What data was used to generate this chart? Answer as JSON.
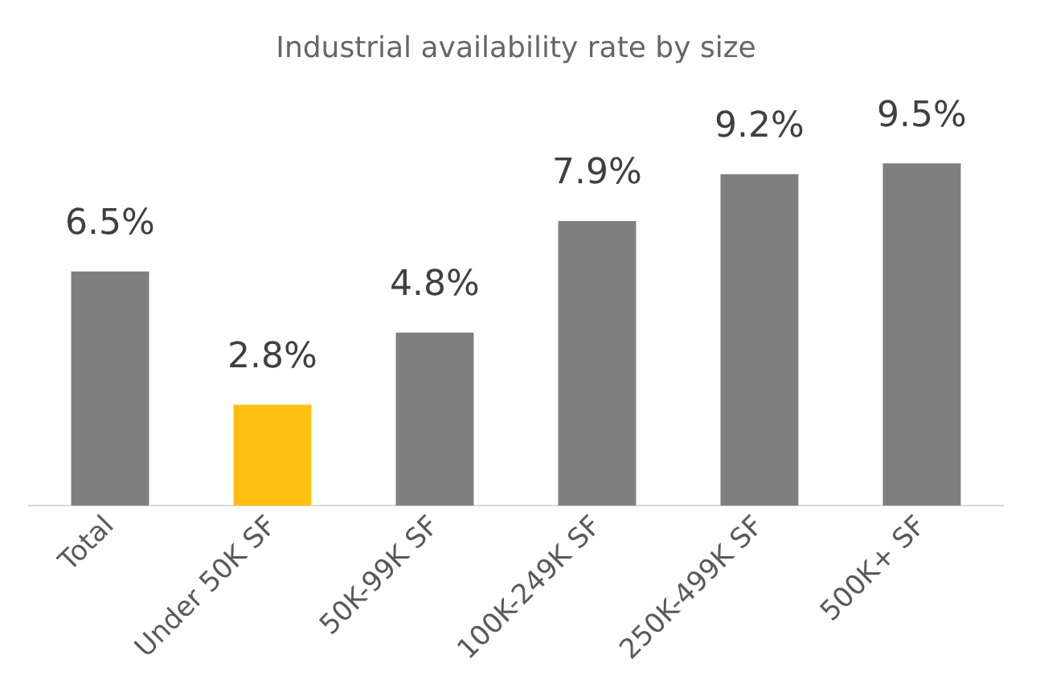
{
  "chart_data": {
    "type": "bar",
    "title": "Industrial availability rate by size",
    "categories": [
      "Total",
      "Under 50K SF",
      "50K-99K SF",
      "100K-249K SF",
      "250K-499K SF",
      "500K+ SF"
    ],
    "values": [
      6.5,
      2.8,
      4.8,
      7.9,
      9.2,
      9.5
    ],
    "colors": [
      "#7f7f7f",
      "#fdbf12",
      "#7f7f7f",
      "#7f7f7f",
      "#7f7f7f",
      "#7f7f7f"
    ],
    "value_labels": [
      "6.5%",
      "2.8%",
      "4.8%",
      "7.9%",
      "9.2%",
      "9.5%"
    ],
    "grid": false,
    "legend": false
  }
}
